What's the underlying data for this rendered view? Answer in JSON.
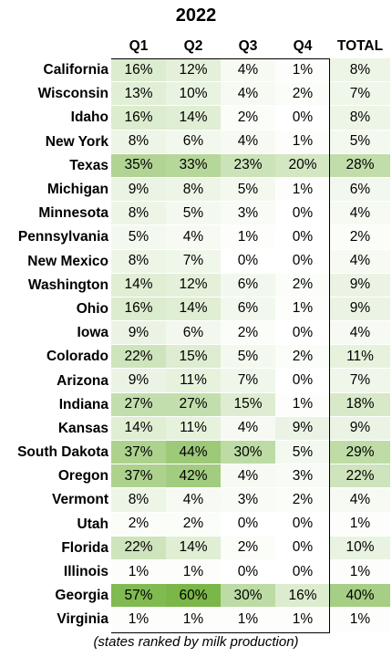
{
  "chart_data": {
    "type": "table",
    "title": "2022",
    "columns": [
      "Q1",
      "Q2",
      "Q3",
      "Q4",
      "TOTAL"
    ],
    "rows": [
      {
        "state": "California",
        "values": [
          "16%",
          "12%",
          "4%",
          "1%",
          "8%"
        ]
      },
      {
        "state": "Wisconsin",
        "values": [
          "13%",
          "10%",
          "4%",
          "2%",
          "7%"
        ]
      },
      {
        "state": "Idaho",
        "values": [
          "16%",
          "14%",
          "2%",
          "0%",
          "8%"
        ]
      },
      {
        "state": "New York",
        "values": [
          "8%",
          "6%",
          "4%",
          "1%",
          "5%"
        ]
      },
      {
        "state": "Texas",
        "values": [
          "35%",
          "33%",
          "23%",
          "20%",
          "28%"
        ]
      },
      {
        "state": "Michigan",
        "values": [
          "9%",
          "8%",
          "5%",
          "1%",
          "6%"
        ]
      },
      {
        "state": "Minnesota",
        "values": [
          "8%",
          "5%",
          "3%",
          "0%",
          "4%"
        ]
      },
      {
        "state": "Pennsylvania",
        "values": [
          "5%",
          "4%",
          "1%",
          "0%",
          "2%"
        ]
      },
      {
        "state": "New Mexico",
        "values": [
          "8%",
          "7%",
          "0%",
          "0%",
          "4%"
        ]
      },
      {
        "state": "Washington",
        "values": [
          "14%",
          "12%",
          "6%",
          "2%",
          "9%"
        ]
      },
      {
        "state": "Ohio",
        "values": [
          "16%",
          "14%",
          "6%",
          "1%",
          "9%"
        ]
      },
      {
        "state": "Iowa",
        "values": [
          "9%",
          "6%",
          "2%",
          "0%",
          "4%"
        ]
      },
      {
        "state": "Colorado",
        "values": [
          "22%",
          "15%",
          "5%",
          "2%",
          "11%"
        ]
      },
      {
        "state": "Arizona",
        "values": [
          "9%",
          "11%",
          "7%",
          "0%",
          "7%"
        ]
      },
      {
        "state": "Indiana",
        "values": [
          "27%",
          "27%",
          "15%",
          "1%",
          "18%"
        ]
      },
      {
        "state": "Kansas",
        "values": [
          "14%",
          "11%",
          "4%",
          "9%",
          "9%"
        ]
      },
      {
        "state": "South Dakota",
        "values": [
          "37%",
          "44%",
          "30%",
          "5%",
          "29%"
        ]
      },
      {
        "state": "Oregon",
        "values": [
          "37%",
          "42%",
          "4%",
          "3%",
          "22%"
        ]
      },
      {
        "state": "Vermont",
        "values": [
          "8%",
          "4%",
          "3%",
          "2%",
          "4%"
        ]
      },
      {
        "state": "Utah",
        "values": [
          "2%",
          "2%",
          "0%",
          "0%",
          "1%"
        ]
      },
      {
        "state": "Florida",
        "values": [
          "22%",
          "14%",
          "2%",
          "0%",
          "10%"
        ]
      },
      {
        "state": "Illinois",
        "values": [
          "1%",
          "1%",
          "0%",
          "0%",
          "1%"
        ]
      },
      {
        "state": "Georgia",
        "values": [
          "57%",
          "60%",
          "30%",
          "16%",
          "40%"
        ]
      },
      {
        "state": "Virginia",
        "values": [
          "1%",
          "1%",
          "1%",
          "1%",
          "1%"
        ]
      }
    ],
    "color_scale": {
      "low": "#ffffff",
      "high": "#7ab648"
    }
  },
  "footnote": "(states ranked by milk production)"
}
